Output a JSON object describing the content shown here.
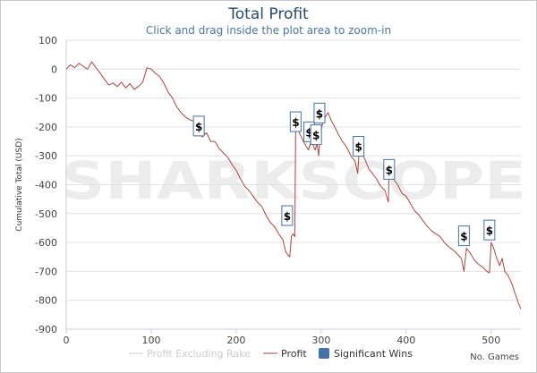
{
  "chart_data": {
    "type": "line",
    "title": "Total Profit",
    "subtitle": "Click and drag inside the plot area to zoom-in",
    "xlabel": "No. Games",
    "ylabel": "Cumulative Total (USD)",
    "xlim": [
      0,
      535
    ],
    "ylim": [
      -900,
      100
    ],
    "x_ticks": [
      0,
      100,
      200,
      300,
      400,
      500
    ],
    "y_ticks": [
      100,
      0,
      -100,
      -200,
      -300,
      -400,
      -500,
      -600,
      -700,
      -800,
      -900
    ],
    "series": [
      {
        "name": "Profit Excluding Rake",
        "color": "#cccccc",
        "visible": false,
        "points": []
      },
      {
        "name": "Profit",
        "color": "#aa4643",
        "visible": true,
        "points": [
          [
            0,
            0
          ],
          [
            5,
            15
          ],
          [
            10,
            5
          ],
          [
            15,
            20
          ],
          [
            20,
            10
          ],
          [
            25,
            0
          ],
          [
            30,
            25
          ],
          [
            35,
            5
          ],
          [
            40,
            -15
          ],
          [
            45,
            -35
          ],
          [
            50,
            -55
          ],
          [
            55,
            -48
          ],
          [
            60,
            -60
          ],
          [
            65,
            -45
          ],
          [
            70,
            -65
          ],
          [
            75,
            -50
          ],
          [
            80,
            -70
          ],
          [
            85,
            -60
          ],
          [
            90,
            -45
          ],
          [
            95,
            5
          ],
          [
            100,
            0
          ],
          [
            105,
            -15
          ],
          [
            110,
            -25
          ],
          [
            115,
            -50
          ],
          [
            120,
            -80
          ],
          [
            125,
            -100
          ],
          [
            130,
            -130
          ],
          [
            135,
            -150
          ],
          [
            140,
            -165
          ],
          [
            145,
            -175
          ],
          [
            150,
            -180
          ],
          [
            155,
            -195
          ],
          [
            160,
            -235
          ],
          [
            165,
            -220
          ],
          [
            170,
            -250
          ],
          [
            175,
            -250
          ],
          [
            180,
            -275
          ],
          [
            185,
            -290
          ],
          [
            190,
            -305
          ],
          [
            195,
            -330
          ],
          [
            200,
            -350
          ],
          [
            205,
            -380
          ],
          [
            210,
            -405
          ],
          [
            215,
            -420
          ],
          [
            220,
            -440
          ],
          [
            225,
            -460
          ],
          [
            230,
            -475
          ],
          [
            235,
            -505
          ],
          [
            240,
            -530
          ],
          [
            245,
            -545
          ],
          [
            250,
            -570
          ],
          [
            255,
            -590
          ],
          [
            258,
            -630
          ],
          [
            260,
            -640
          ],
          [
            263,
            -650
          ],
          [
            265,
            -580
          ],
          [
            267,
            -570
          ],
          [
            269,
            -580
          ],
          [
            270,
            -190
          ],
          [
            275,
            -225
          ],
          [
            280,
            -255
          ],
          [
            285,
            -280
          ],
          [
            288,
            -250
          ],
          [
            290,
            -260
          ],
          [
            293,
            -280
          ],
          [
            295,
            -255
          ],
          [
            297,
            -300
          ],
          [
            299,
            -220
          ],
          [
            302,
            -185
          ],
          [
            305,
            -165
          ],
          [
            308,
            -150
          ],
          [
            312,
            -180
          ],
          [
            316,
            -200
          ],
          [
            320,
            -225
          ],
          [
            325,
            -250
          ],
          [
            330,
            -270
          ],
          [
            335,
            -300
          ],
          [
            340,
            -320
          ],
          [
            343,
            -360
          ],
          [
            345,
            -270
          ],
          [
            348,
            -290
          ],
          [
            352,
            -315
          ],
          [
            356,
            -345
          ],
          [
            360,
            -360
          ],
          [
            365,
            -380
          ],
          [
            370,
            -405
          ],
          [
            375,
            -420
          ],
          [
            379,
            -460
          ],
          [
            380,
            -355
          ],
          [
            385,
            -380
          ],
          [
            390,
            -400
          ],
          [
            395,
            -430
          ],
          [
            400,
            -440
          ],
          [
            405,
            -465
          ],
          [
            410,
            -490
          ],
          [
            415,
            -505
          ],
          [
            420,
            -525
          ],
          [
            425,
            -545
          ],
          [
            430,
            -560
          ],
          [
            435,
            -570
          ],
          [
            440,
            -580
          ],
          [
            445,
            -600
          ],
          [
            450,
            -615
          ],
          [
            455,
            -625
          ],
          [
            460,
            -640
          ],
          [
            465,
            -655
          ],
          [
            468,
            -700
          ],
          [
            471,
            -620
          ],
          [
            475,
            -635
          ],
          [
            480,
            -660
          ],
          [
            485,
            -675
          ],
          [
            490,
            -685
          ],
          [
            495,
            -700
          ],
          [
            498,
            -705
          ],
          [
            500,
            -600
          ],
          [
            503,
            -620
          ],
          [
            506,
            -650
          ],
          [
            510,
            -680
          ],
          [
            513,
            -655
          ],
          [
            516,
            -700
          ],
          [
            520,
            -715
          ],
          [
            524,
            -740
          ],
          [
            528,
            -775
          ],
          [
            532,
            -810
          ],
          [
            535,
            -830
          ]
        ]
      },
      {
        "name": "Significant Wins",
        "color": "#4572a7",
        "type": "flag",
        "flag_label": "$",
        "points": [
          [
            156,
            -200
          ],
          [
            260,
            -510
          ],
          [
            270,
            -185
          ],
          [
            286,
            -220
          ],
          [
            294,
            -230
          ],
          [
            298,
            -155
          ],
          [
            344,
            -270
          ],
          [
            380,
            -350
          ],
          [
            468,
            -580
          ],
          [
            498,
            -560
          ]
        ]
      }
    ],
    "legend": [
      "Profit Excluding Rake",
      "Profit",
      "Significant Wins"
    ],
    "legend_position": "bottom-center",
    "watermark": "SHARKSCOPE"
  }
}
